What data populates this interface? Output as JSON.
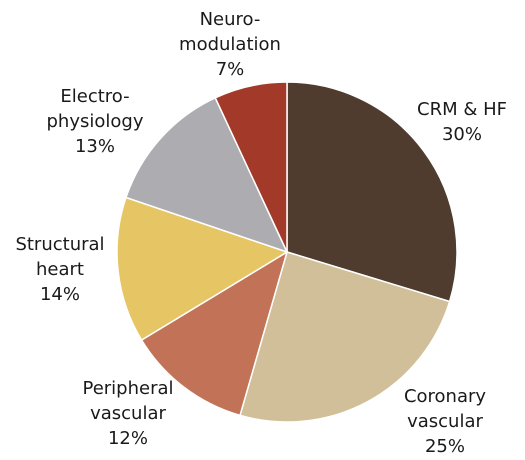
{
  "chart_data": {
    "type": "pie",
    "categories": [
      [
        "CRM & HF"
      ],
      [
        "Coronary",
        "vascular"
      ],
      [
        "Peripheral",
        "vascular"
      ],
      [
        "Structural",
        "heart"
      ],
      [
        "Electro-",
        "physiology"
      ],
      [
        "Neuro-",
        "modulation"
      ]
    ],
    "values": [
      30,
      25,
      12,
      14,
      13,
      7
    ],
    "value_labels": [
      "30%",
      "25%",
      "12%",
      "14%",
      "13%",
      "7%"
    ],
    "colors": [
      "#4f3c2f",
      "#d1bf99",
      "#c27256",
      "#e6c564",
      "#adadb1",
      "#a33a29"
    ]
  }
}
